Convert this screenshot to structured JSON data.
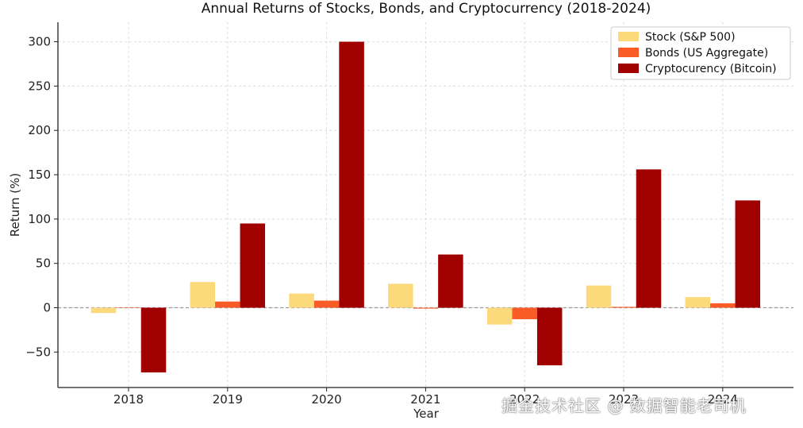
{
  "chart_data": {
    "type": "bar",
    "title": "Annual Returns of Stocks, Bonds, and Cryptocurrency (2018-2024)",
    "xlabel": "Year",
    "ylabel": "Return (%)",
    "categories": [
      "2018",
      "2019",
      "2020",
      "2021",
      "2022",
      "2023",
      "2024"
    ],
    "ylim": [
      -90,
      322
    ],
    "yticks": [
      -50,
      0,
      50,
      100,
      150,
      200,
      250,
      300
    ],
    "grid": true,
    "legend_position": "top-right",
    "series": [
      {
        "name": "Stock (S&P 500)",
        "color": "#fcd97a",
        "values": [
          -6,
          29,
          16,
          27,
          -19,
          25,
          12
        ]
      },
      {
        "name": "Bonds (US Aggregate)",
        "color": "#f95c26",
        "values": [
          0,
          7,
          8,
          -1,
          -13,
          1,
          5
        ]
      },
      {
        "name": "Cryptocurency (Bitcoin)",
        "color": "#a00000",
        "values": [
          -73,
          95,
          300,
          60,
          -65,
          156,
          121
        ]
      }
    ]
  },
  "watermark": "掘金技术社区 @ 数据智能老司机"
}
